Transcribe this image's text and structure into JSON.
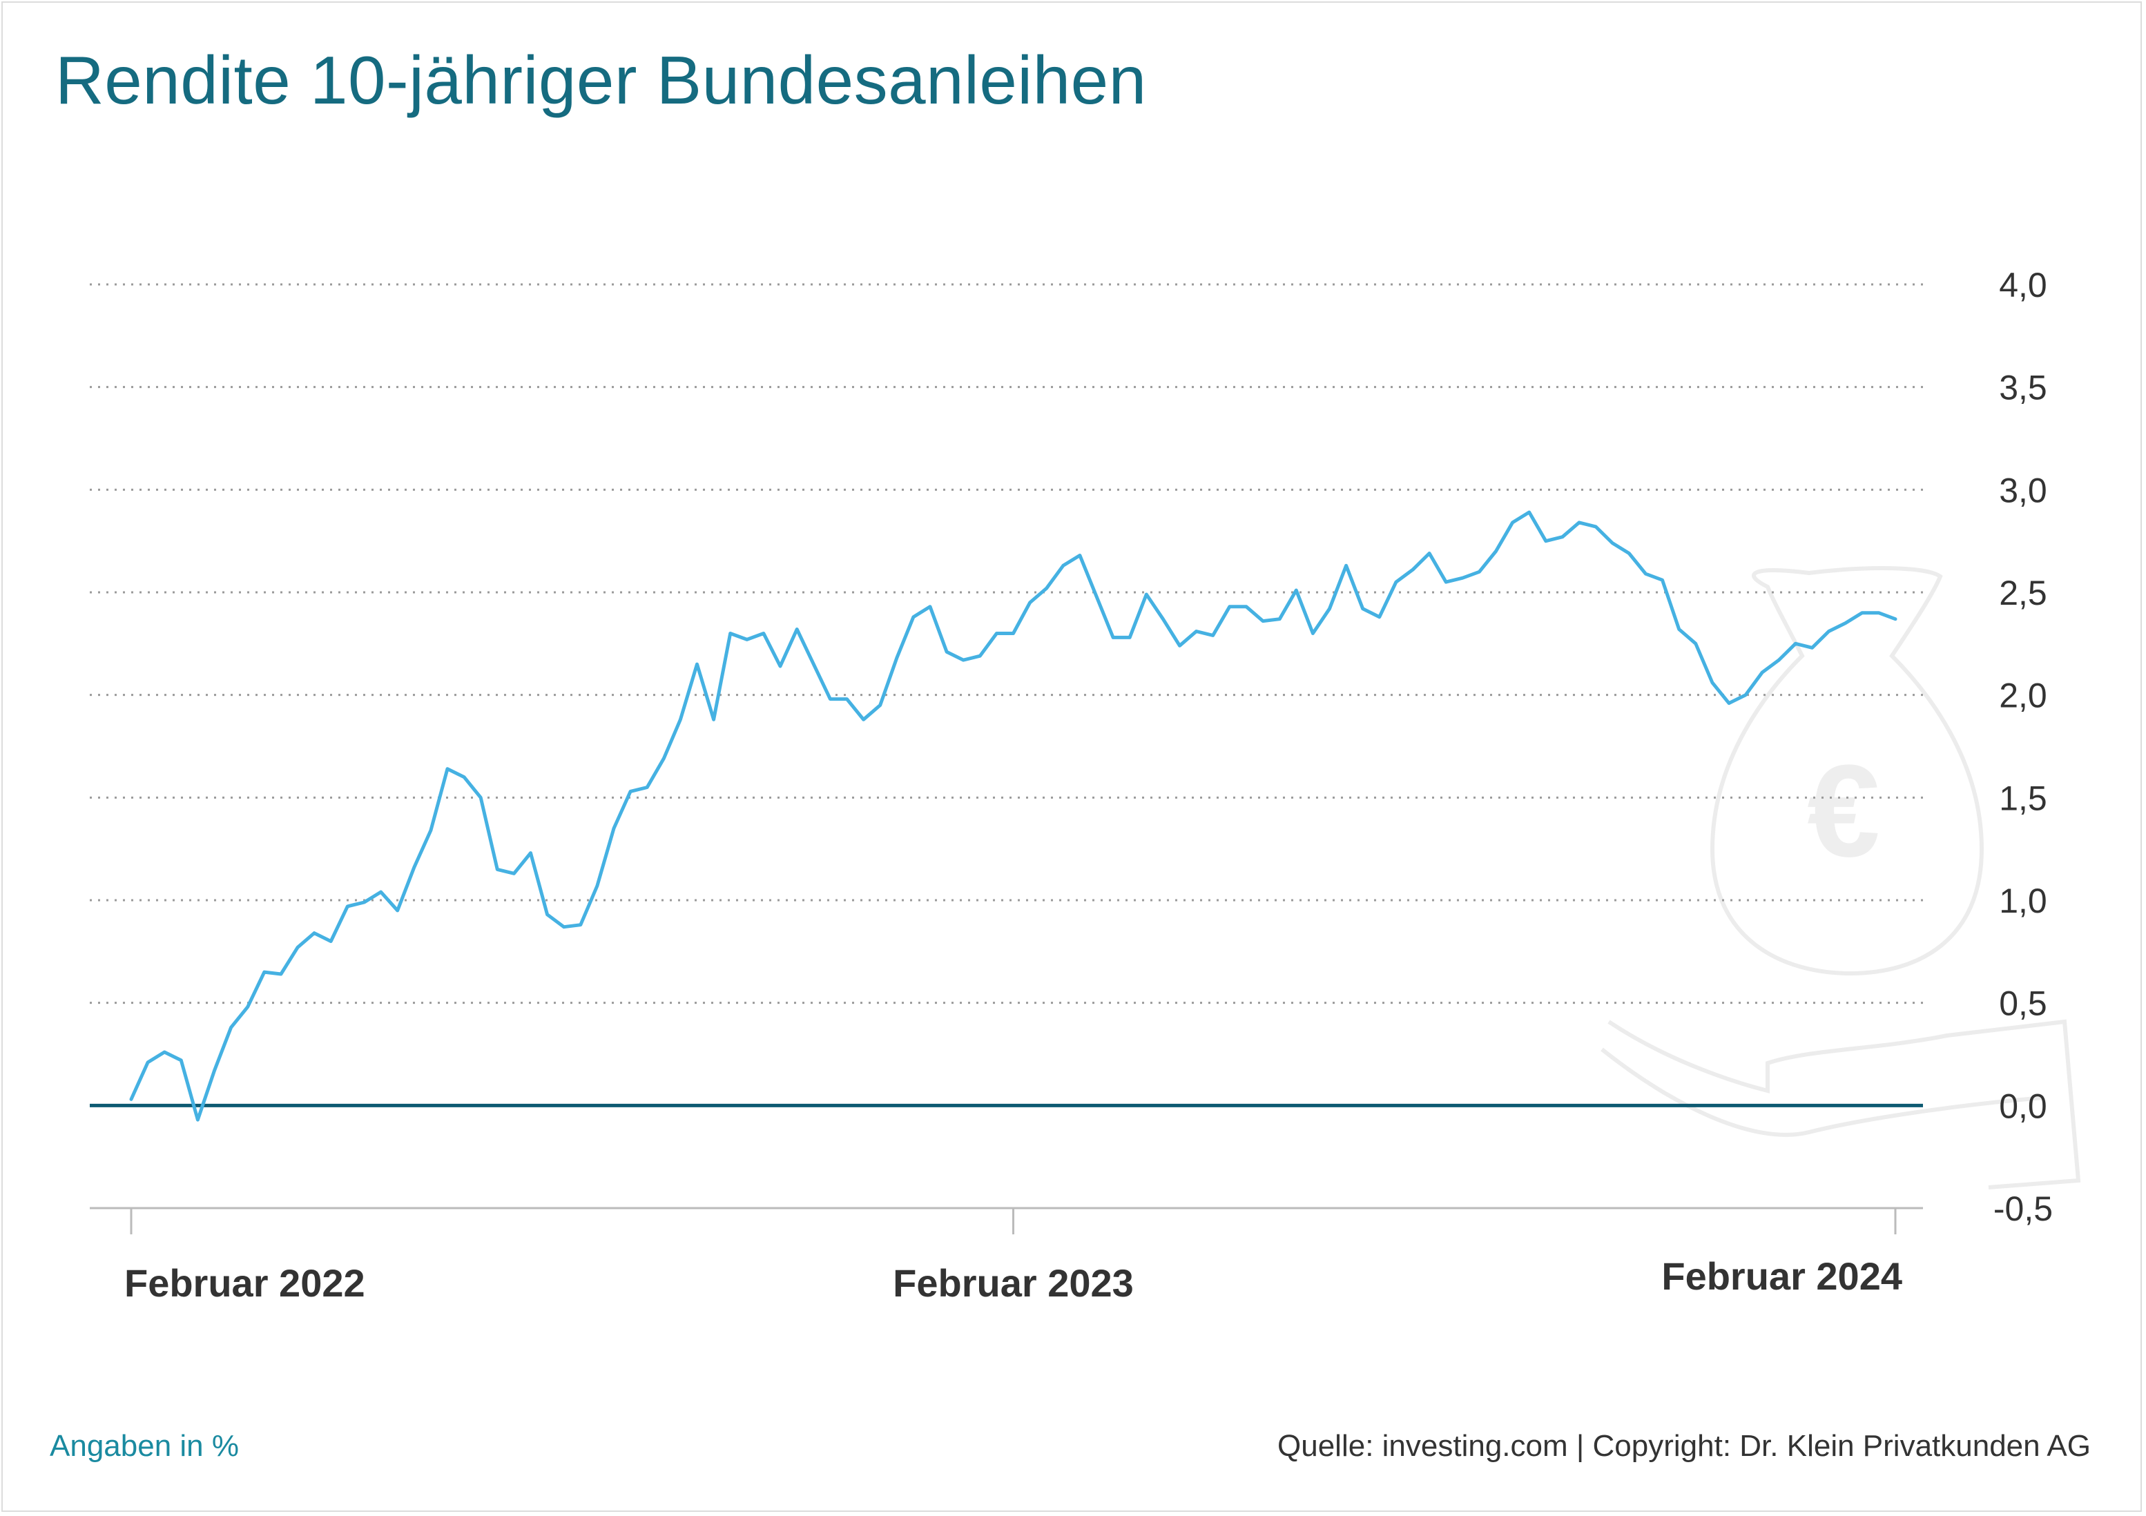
{
  "chart_data": {
    "type": "line",
    "title": "Rendite 10-jähriger Bundesanleihen",
    "ylim": [
      -0.5,
      4.0
    ],
    "yticks": [
      {
        "value": 4.0,
        "label": "4,0"
      },
      {
        "value": 3.5,
        "label": "3,5"
      },
      {
        "value": 3.0,
        "label": "3,0"
      },
      {
        "value": 2.5,
        "label": "2,5"
      },
      {
        "value": 2.0,
        "label": "2,0"
      },
      {
        "value": 1.5,
        "label": "1,5"
      },
      {
        "value": 1.0,
        "label": "1,0"
      },
      {
        "value": 0.5,
        "label": "0,5"
      },
      {
        "value": 0.0,
        "label": "0,0"
      },
      {
        "value": -0.5,
        "label": "-0,5"
      }
    ],
    "xticks": [
      {
        "value": 0,
        "label": "Februar 2022"
      },
      {
        "value": 53,
        "label": "Februar 2023"
      },
      {
        "value": 106,
        "label": "Februar 2024"
      }
    ],
    "grid": true,
    "colors": {
      "line": "#45b1e2",
      "zero_line": "#0d5a72",
      "grid": "#9a9a9a"
    },
    "series": [
      {
        "values": [
          0.03,
          0.21,
          0.26,
          0.22,
          -0.07,
          0.17,
          0.38,
          0.48,
          0.65,
          0.64,
          0.77,
          0.84,
          0.8,
          0.97,
          0.99,
          1.04,
          0.95,
          1.16,
          1.34,
          1.64,
          1.6,
          1.5,
          1.15,
          1.13,
          1.23,
          0.93,
          0.87,
          0.88,
          1.07,
          1.35,
          1.53,
          1.55,
          1.69,
          1.88,
          2.15,
          1.88,
          2.3,
          2.27,
          2.3,
          2.14,
          2.32,
          2.15,
          1.98,
          1.98,
          1.88,
          1.95,
          2.18,
          2.38,
          2.43,
          2.21,
          2.17,
          2.19,
          2.3,
          2.3,
          2.45,
          2.52,
          2.63,
          2.68,
          2.48,
          2.28,
          2.28,
          2.49,
          2.37,
          2.24,
          2.31,
          2.29,
          2.43,
          2.43,
          2.36,
          2.37,
          2.51,
          2.3,
          2.42,
          2.63,
          2.42,
          2.38,
          2.55,
          2.61,
          2.69,
          2.55,
          2.57,
          2.6,
          2.7,
          2.84,
          2.89,
          2.75,
          2.77,
          2.84,
          2.82,
          2.74,
          2.69,
          2.59,
          2.56,
          2.32,
          2.25,
          2.06,
          1.96,
          2.0,
          2.11,
          2.17,
          2.25,
          2.23,
          2.31,
          2.35,
          2.4,
          2.4,
          2.37
        ]
      }
    ]
  },
  "footer": {
    "left": "Angaben in %",
    "right": "Quelle: investing.com | Copyright: Dr. Klein Privatkunden AG"
  }
}
